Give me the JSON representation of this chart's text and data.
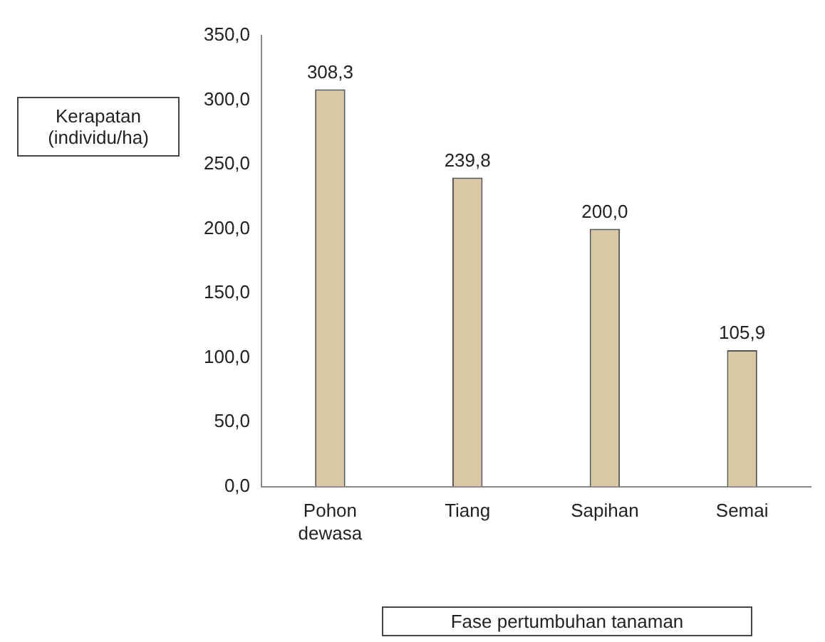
{
  "chart_data": {
    "type": "bar",
    "xlabel": "Fase pertumbuhan tanaman",
    "ylabel": "Kerapatan (individu/ha)",
    "categories": [
      "Pohon dewasa",
      "Tiang",
      "Sapihan",
      "Semai"
    ],
    "values": [
      308.3,
      239.8,
      200.0,
      105.9
    ],
    "value_labels": [
      "308,3",
      "239,8",
      "200,0",
      "105,9"
    ],
    "color": "#d8c8a6",
    "ylim": [
      0,
      350
    ],
    "yticks": [
      {
        "value": 0,
        "label": "0,0"
      },
      {
        "value": 50,
        "label": "50,0"
      },
      {
        "value": 100,
        "label": "100,0"
      },
      {
        "value": 150,
        "label": "150,0"
      },
      {
        "value": 200,
        "label": "200,0"
      },
      {
        "value": 250,
        "label": "250,0"
      },
      {
        "value": 300,
        "label": "300,0"
      },
      {
        "value": 350,
        "label": "350,0"
      }
    ],
    "grid": false,
    "legend": false
  }
}
